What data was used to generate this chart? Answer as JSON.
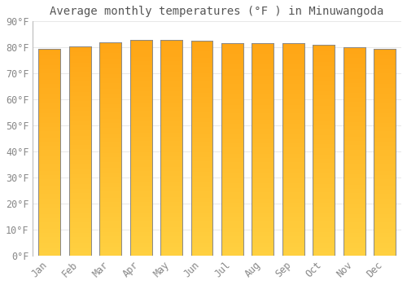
{
  "title": "Average monthly temperatures (°F ) in Minuwangoda",
  "months": [
    "Jan",
    "Feb",
    "Mar",
    "Apr",
    "May",
    "Jun",
    "Jul",
    "Aug",
    "Sep",
    "Oct",
    "Nov",
    "Dec"
  ],
  "values": [
    79.5,
    80.5,
    82.0,
    83.0,
    83.0,
    82.5,
    81.5,
    81.5,
    81.5,
    81.0,
    80.0,
    79.5
  ],
  "bar_color_top": "#FFA515",
  "bar_color_bottom": "#FFD040",
  "edge_color": "#888888",
  "background_color": "#FFFFFF",
  "grid_color": "#E8E8E8",
  "text_color": "#888888",
  "title_color": "#555555",
  "ylim": [
    0,
    90
  ],
  "yticks": [
    0,
    10,
    20,
    30,
    40,
    50,
    60,
    70,
    80,
    90
  ],
  "title_fontsize": 10,
  "tick_fontsize": 8.5,
  "bar_width": 0.72
}
